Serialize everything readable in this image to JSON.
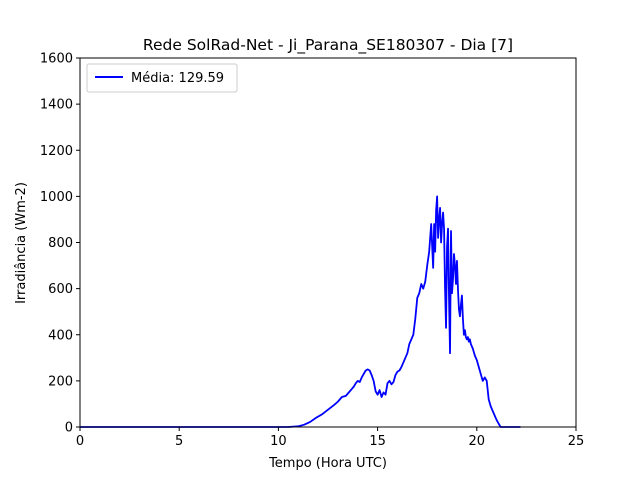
{
  "chart_data": {
    "type": "line",
    "title": "Rede SolRad-Net - Ji_Parana_SE180307 - Dia [7]",
    "xlabel": "Tempo (Hora UTC)",
    "ylabel": "Irradiância (Wm-2)",
    "xlim": [
      0,
      25
    ],
    "ylim": [
      0,
      1600
    ],
    "xticks": [
      0,
      5,
      10,
      15,
      20,
      25
    ],
    "yticks": [
      0,
      200,
      400,
      600,
      800,
      1000,
      1200,
      1400,
      1600
    ],
    "grid": false,
    "legend_position": "top-left",
    "series": [
      {
        "name": "Média: 129.59",
        "color": "#0000ff",
        "x": [
          0,
          10.5,
          11.0,
          11.3,
          11.6,
          11.9,
          12.2,
          12.5,
          12.8,
          13.0,
          13.2,
          13.4,
          13.6,
          13.7,
          13.8,
          13.9,
          14.0,
          14.1,
          14.2,
          14.3,
          14.4,
          14.5,
          14.6,
          14.7,
          14.8,
          14.9,
          15.0,
          15.1,
          15.2,
          15.3,
          15.4,
          15.5,
          15.6,
          15.7,
          15.8,
          15.9,
          16.0,
          16.1,
          16.2,
          16.3,
          16.4,
          16.5,
          16.6,
          16.7,
          16.8,
          16.9,
          17.0,
          17.1,
          17.2,
          17.3,
          17.4,
          17.5,
          17.6,
          17.7,
          17.8,
          17.85,
          17.9,
          17.95,
          18.0,
          18.05,
          18.1,
          18.15,
          18.2,
          18.25,
          18.3,
          18.35,
          18.4,
          18.45,
          18.5,
          18.55,
          18.6,
          18.65,
          18.7,
          18.75,
          18.8,
          18.85,
          18.9,
          18.95,
          19.0,
          19.05,
          19.1,
          19.15,
          19.2,
          19.25,
          19.3,
          19.35,
          19.4,
          19.45,
          19.5,
          19.55,
          19.6,
          19.65,
          19.7,
          19.8,
          19.9,
          20.0,
          20.1,
          20.2,
          20.3,
          20.4,
          20.5,
          20.6,
          20.7,
          20.8,
          20.9,
          21.0,
          21.1,
          21.2,
          21.3,
          21.4,
          21.5,
          21.7,
          21.9,
          22.1,
          22.2
        ],
        "y": [
          0,
          0,
          3,
          10,
          22,
          40,
          55,
          75,
          95,
          110,
          130,
          135,
          155,
          165,
          175,
          190,
          200,
          195,
          215,
          230,
          245,
          250,
          245,
          225,
          200,
          155,
          140,
          160,
          130,
          150,
          140,
          190,
          200,
          185,
          195,
          225,
          240,
          245,
          260,
          280,
          300,
          320,
          360,
          380,
          400,
          470,
          560,
          580,
          620,
          600,
          630,
          700,
          760,
          880,
          690,
          880,
          760,
          940,
          1000,
          820,
          900,
          950,
          800,
          880,
          930,
          860,
          600,
          430,
          780,
          860,
          560,
          320,
          850,
          580,
          640,
          750,
          700,
          620,
          720,
          600,
          510,
          480,
          530,
          570,
          470,
          400,
          420,
          390,
          380,
          390,
          370,
          380,
          360,
          340,
          310,
          290,
          260,
          230,
          200,
          215,
          200,
          120,
          90,
          70,
          50,
          30,
          15,
          0,
          0,
          0,
          0,
          0,
          0,
          0,
          0
        ]
      }
    ]
  }
}
